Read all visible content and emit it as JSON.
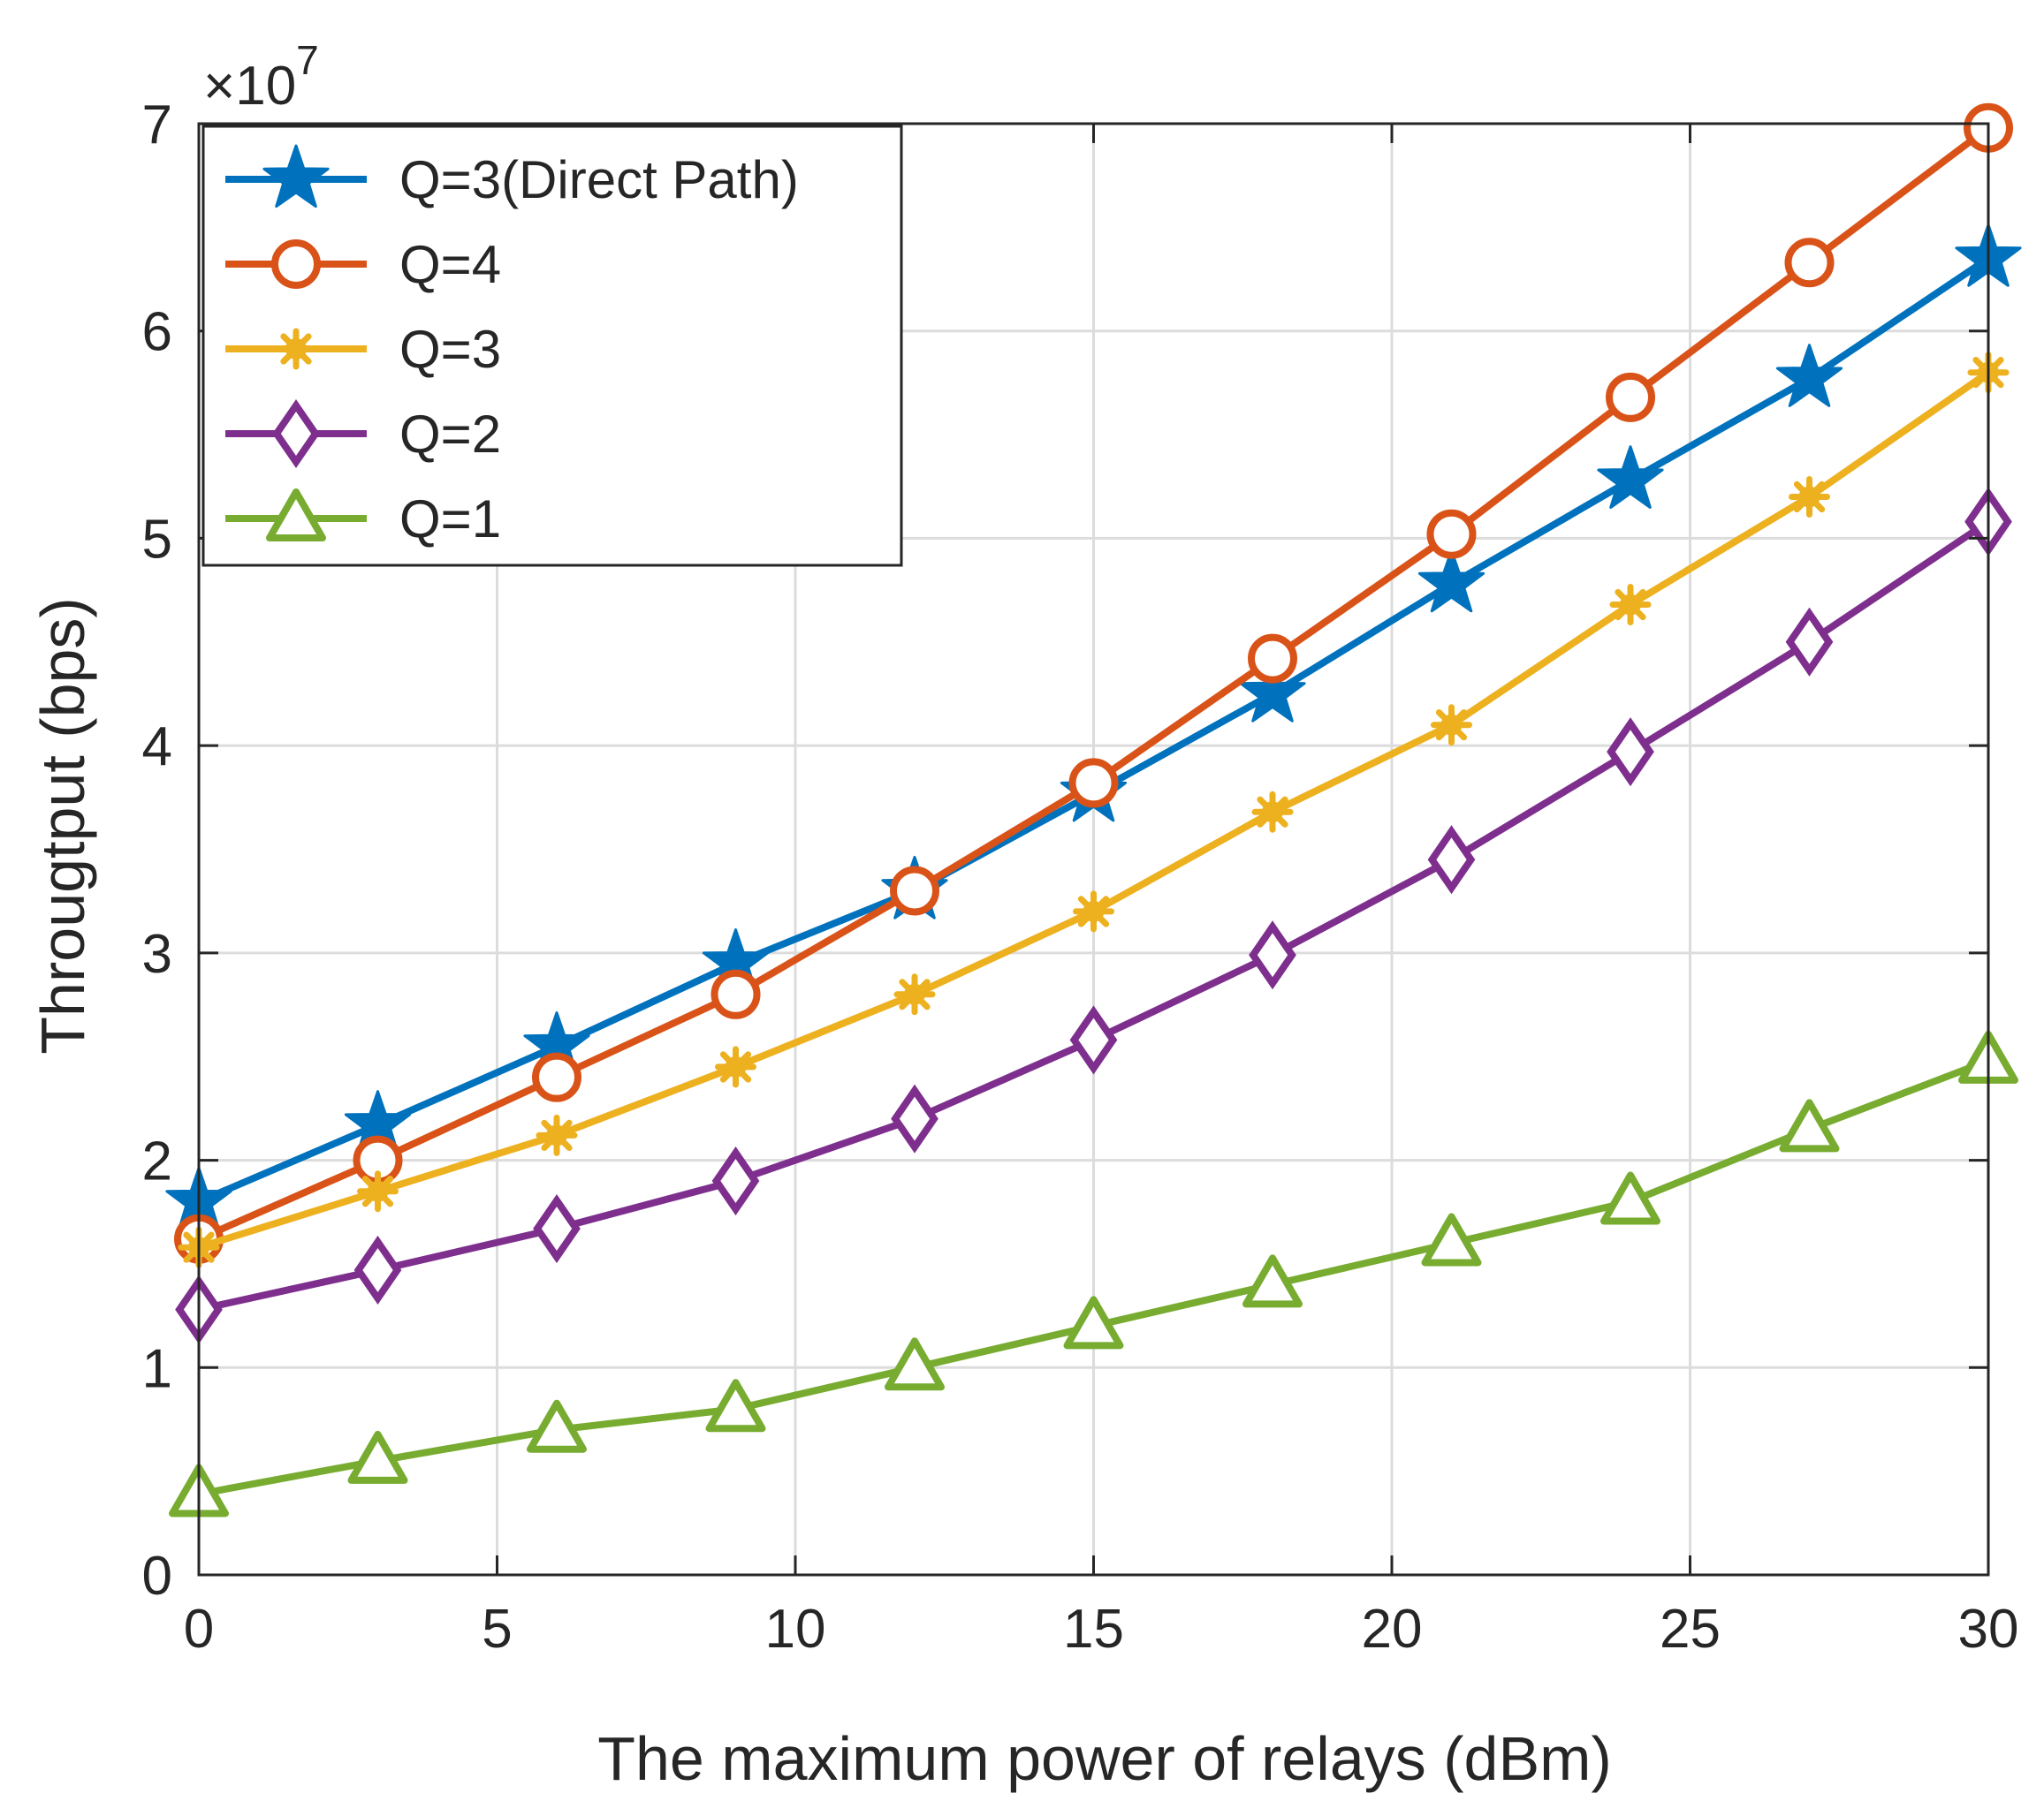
{
  "chart_data": {
    "type": "line",
    "xlabel": "The maximum power of relays (dBm)",
    "ylabel": "Througtput (bps)",
    "y_exponent_prefix": "×10",
    "y_exponent": "7",
    "xlim": [
      0,
      30
    ],
    "ylim": [
      0,
      7
    ],
    "xticks": [
      0,
      5,
      10,
      15,
      20,
      25,
      30
    ],
    "yticks": [
      0,
      1,
      2,
      3,
      4,
      5,
      6,
      7
    ],
    "xtick_labels": [
      "0",
      "5",
      "10",
      "15",
      "20",
      "25",
      "30"
    ],
    "ytick_labels": [
      "0",
      "1",
      "2",
      "3",
      "4",
      "5",
      "6",
      "7"
    ],
    "grid": true,
    "legend_position": "top-left",
    "x": [
      0,
      3,
      6,
      9,
      12,
      15,
      18,
      21,
      24,
      27,
      30
    ],
    "series": [
      {
        "name": "Q=3(Direct Path)",
        "color": "#0072bd",
        "marker": "star",
        "values": [
          1.8,
          2.17,
          2.55,
          2.95,
          3.3,
          3.77,
          4.25,
          4.78,
          5.28,
          5.77,
          6.35
        ]
      },
      {
        "name": "Q=4",
        "color": "#d95319",
        "marker": "circle",
        "values": [
          1.62,
          2.0,
          2.4,
          2.8,
          3.3,
          3.82,
          4.42,
          5.02,
          5.68,
          6.33,
          6.98
        ]
      },
      {
        "name": "Q=3",
        "color": "#edb120",
        "marker": "asterisk",
        "values": [
          1.58,
          1.85,
          2.12,
          2.45,
          2.8,
          3.2,
          3.68,
          4.1,
          4.68,
          5.2,
          5.8
        ]
      },
      {
        "name": "Q=2",
        "color": "#7e2f8e",
        "marker": "diamond",
        "values": [
          1.28,
          1.47,
          1.67,
          1.9,
          2.2,
          2.58,
          2.99,
          3.45,
          3.97,
          4.5,
          5.08
        ]
      },
      {
        "name": "Q=1",
        "color": "#77ac30",
        "marker": "triangle",
        "values": [
          0.39,
          0.55,
          0.7,
          0.8,
          1.0,
          1.2,
          1.4,
          1.6,
          1.8,
          2.15,
          2.48
        ]
      }
    ]
  }
}
